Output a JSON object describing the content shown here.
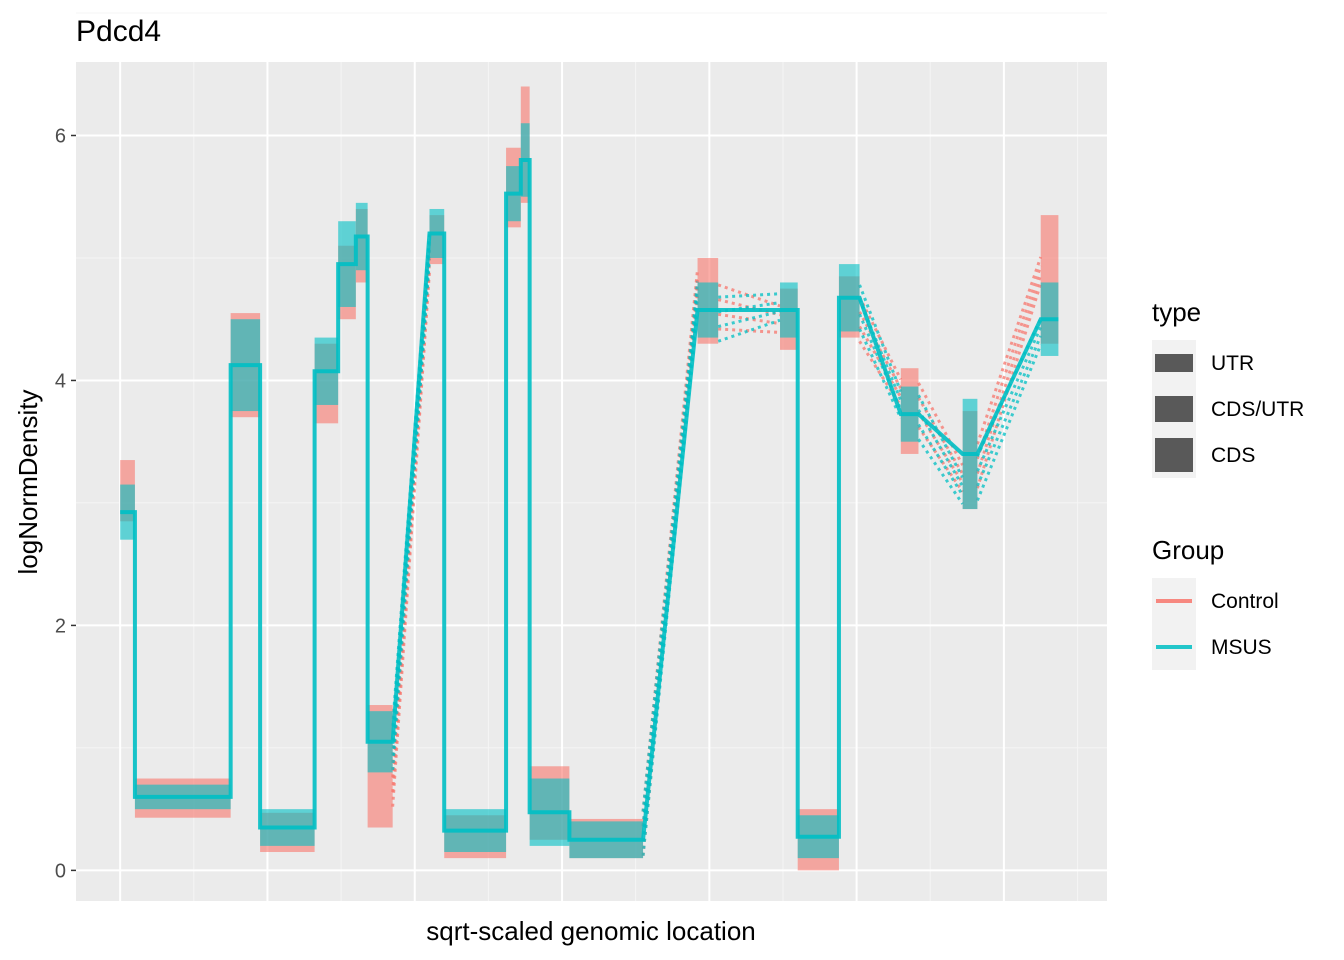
{
  "chart_data": {
    "type": "line",
    "title": "Pdcd4",
    "xlabel": "sqrt-scaled genomic location",
    "ylabel": "logNormDensity",
    "xlim": [
      -0.3,
      6.7
    ],
    "ylim": [
      -0.25,
      6.6
    ],
    "yticks": [
      0,
      2,
      4,
      6
    ],
    "grid": true,
    "legend_position": "right",
    "legend_type": {
      "title": "type",
      "items": [
        {
          "label": "UTR",
          "thickness": 1
        },
        {
          "label": "CDS/UTR",
          "thickness": 2
        },
        {
          "label": "CDS",
          "thickness": 3
        }
      ]
    },
    "legend_group": {
      "title": "Group",
      "items": [
        {
          "label": "Control",
          "color": "#F8766D"
        },
        {
          "label": "MSUS",
          "color": "#00BFC4"
        }
      ]
    },
    "exons": [
      {
        "x": [
          0.0,
          0.1
        ],
        "control": [
          2.85,
          3.35
        ],
        "msus": [
          2.7,
          3.15
        ]
      },
      {
        "x": [
          0.1,
          0.75
        ],
        "control": [
          0.43,
          0.75
        ],
        "msus": [
          0.5,
          0.7
        ]
      },
      {
        "x": [
          0.75,
          0.95
        ],
        "control": [
          3.7,
          4.55
        ],
        "msus": [
          3.75,
          4.5
        ]
      },
      {
        "x": [
          0.95,
          1.32
        ],
        "control": [
          0.15,
          0.47
        ],
        "msus": [
          0.2,
          0.5
        ]
      },
      {
        "x": [
          1.32,
          1.48
        ],
        "control": [
          3.65,
          4.3
        ],
        "msus": [
          3.8,
          4.35
        ]
      },
      {
        "x": [
          1.48,
          1.6
        ],
        "control": [
          4.5,
          5.1
        ],
        "msus": [
          4.6,
          5.3
        ]
      },
      {
        "x": [
          1.6,
          1.68
        ],
        "control": [
          4.8,
          5.4
        ],
        "msus": [
          4.9,
          5.45
        ]
      },
      {
        "x": [
          1.68,
          1.85
        ],
        "control": [
          0.35,
          1.35
        ],
        "msus": [
          0.8,
          1.3
        ]
      },
      {
        "x": [
          2.1,
          2.2
        ],
        "control": [
          4.95,
          5.35
        ],
        "msus": [
          5.0,
          5.4
        ]
      },
      {
        "x": [
          2.2,
          2.62
        ],
        "control": [
          0.1,
          0.45
        ],
        "msus": [
          0.15,
          0.5
        ]
      },
      {
        "x": [
          2.62,
          2.72
        ],
        "control": [
          5.25,
          5.9
        ],
        "msus": [
          5.3,
          5.75
        ]
      },
      {
        "x": [
          2.72,
          2.78
        ],
        "control": [
          5.45,
          6.4
        ],
        "msus": [
          5.5,
          6.1
        ]
      },
      {
        "x": [
          2.78,
          3.05
        ],
        "control": [
          0.25,
          0.85
        ],
        "msus": [
          0.2,
          0.75
        ]
      },
      {
        "x": [
          3.05,
          3.55
        ],
        "control": [
          0.1,
          0.42
        ],
        "msus": [
          0.1,
          0.4
        ]
      },
      {
        "x": [
          3.92,
          4.06
        ],
        "control": [
          4.3,
          5.0
        ],
        "msus": [
          4.35,
          4.8
        ]
      },
      {
        "x": [
          4.48,
          4.6
        ],
        "control": [
          4.25,
          4.75
        ],
        "msus": [
          4.35,
          4.8
        ]
      },
      {
        "x": [
          4.6,
          4.88
        ],
        "control": [
          0.0,
          0.5
        ],
        "msus": [
          0.1,
          0.45
        ]
      },
      {
        "x": [
          4.88,
          5.02
        ],
        "control": [
          4.35,
          4.85
        ],
        "msus": [
          4.4,
          4.95
        ]
      },
      {
        "x": [
          5.3,
          5.42
        ],
        "control": [
          3.4,
          4.1
        ],
        "msus": [
          3.5,
          3.95
        ]
      },
      {
        "x": [
          5.72,
          5.82
        ],
        "control": [
          2.95,
          3.75
        ],
        "msus": [
          2.95,
          3.85
        ]
      },
      {
        "x": [
          6.25,
          6.37
        ],
        "control": [
          4.3,
          5.35
        ],
        "msus": [
          4.2,
          4.8
        ]
      }
    ],
    "introns": [
      {
        "x": [
          1.85,
          2.1
        ],
        "control": [
          0.7,
          5.0
        ],
        "msus": [
          1.0,
          5.1
        ],
        "style": "dotted"
      },
      {
        "x": [
          3.55,
          3.92
        ],
        "control": [
          0.3,
          4.8
        ],
        "msus": [
          0.3,
          4.7
        ],
        "style": "dotted"
      },
      {
        "x": [
          4.06,
          4.48
        ],
        "control": [
          4.6,
          4.5
        ],
        "msus": [
          4.5,
          4.6
        ],
        "style": "dotted"
      },
      {
        "x": [
          5.02,
          5.3
        ],
        "control": [
          4.5,
          3.9
        ],
        "msus": [
          4.6,
          3.8
        ],
        "style": "dotted"
      },
      {
        "x": [
          5.42,
          5.72
        ],
        "control": [
          3.8,
          3.2
        ],
        "msus": [
          3.7,
          3.1
        ],
        "style": "dotted"
      },
      {
        "x": [
          5.82,
          6.25
        ],
        "control": [
          3.3,
          4.9
        ],
        "msus": [
          3.2,
          4.4
        ],
        "style": "dotted"
      }
    ]
  }
}
